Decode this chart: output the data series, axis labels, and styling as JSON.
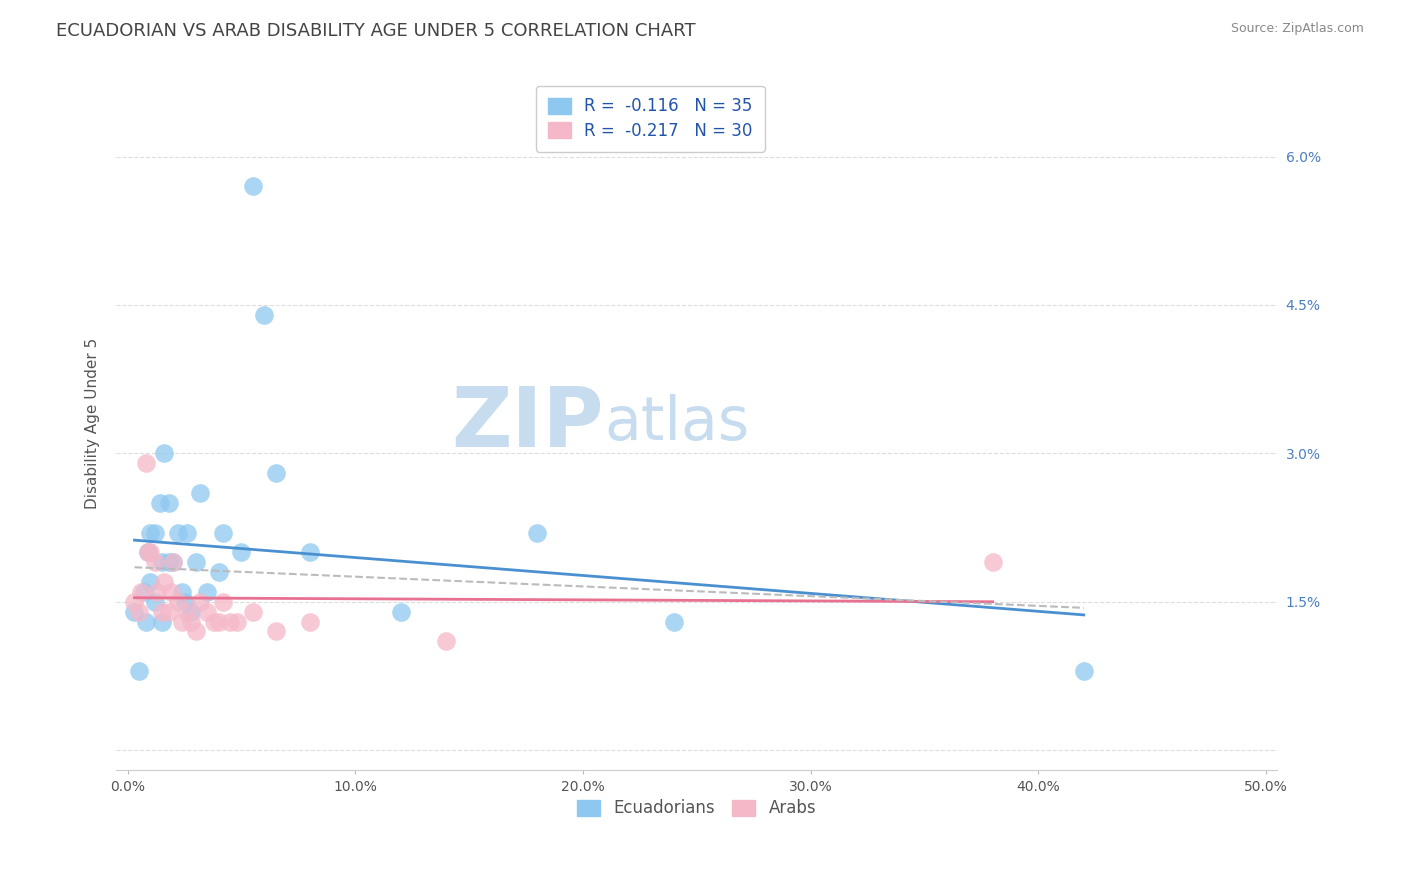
{
  "title": "ECUADORIAN VS ARAB DISABILITY AGE UNDER 5 CORRELATION CHART",
  "source": "Source: ZipAtlas.com",
  "ylabel": "Disability Age Under 5",
  "xlim": [
    -0.005,
    0.505
  ],
  "ylim": [
    -0.002,
    0.068
  ],
  "xticks": [
    0.0,
    0.1,
    0.2,
    0.3,
    0.4,
    0.5
  ],
  "xtick_labels": [
    "0.0%",
    "10.0%",
    "20.0%",
    "30.0%",
    "40.0%",
    "50.0%"
  ],
  "ytick_labels": [
    "",
    "1.5%",
    "3.0%",
    "4.5%",
    "6.0%"
  ],
  "yticks": [
    0.0,
    0.015,
    0.03,
    0.045,
    0.06
  ],
  "ytick_right_labels": [
    "1.5%",
    "3.0%",
    "4.5%",
    "6.0%"
  ],
  "yticks_right": [
    0.015,
    0.03,
    0.045,
    0.06
  ],
  "ecuadorians_x": [
    0.003,
    0.005,
    0.007,
    0.008,
    0.009,
    0.01,
    0.01,
    0.012,
    0.012,
    0.014,
    0.015,
    0.015,
    0.016,
    0.018,
    0.018,
    0.02,
    0.022,
    0.024,
    0.025,
    0.026,
    0.028,
    0.03,
    0.032,
    0.035,
    0.04,
    0.042,
    0.05,
    0.055,
    0.06,
    0.065,
    0.08,
    0.12,
    0.18,
    0.24,
    0.42
  ],
  "ecuadorians_y": [
    0.014,
    0.008,
    0.016,
    0.013,
    0.02,
    0.017,
    0.022,
    0.015,
    0.022,
    0.025,
    0.019,
    0.013,
    0.03,
    0.019,
    0.025,
    0.019,
    0.022,
    0.016,
    0.015,
    0.022,
    0.014,
    0.019,
    0.026,
    0.016,
    0.018,
    0.022,
    0.02,
    0.057,
    0.044,
    0.028,
    0.02,
    0.014,
    0.022,
    0.013,
    0.008
  ],
  "arabs_x": [
    0.003,
    0.005,
    0.006,
    0.008,
    0.009,
    0.01,
    0.012,
    0.013,
    0.015,
    0.016,
    0.018,
    0.019,
    0.02,
    0.022,
    0.024,
    0.026,
    0.028,
    0.03,
    0.032,
    0.035,
    0.038,
    0.04,
    0.042,
    0.045,
    0.048,
    0.055,
    0.065,
    0.08,
    0.14,
    0.38
  ],
  "arabs_y": [
    0.015,
    0.014,
    0.016,
    0.029,
    0.02,
    0.02,
    0.019,
    0.016,
    0.014,
    0.017,
    0.014,
    0.016,
    0.019,
    0.015,
    0.013,
    0.014,
    0.013,
    0.012,
    0.015,
    0.014,
    0.013,
    0.013,
    0.015,
    0.013,
    0.013,
    0.014,
    0.012,
    0.013,
    0.011,
    0.019
  ],
  "ecu_R": -0.116,
  "ecu_N": 35,
  "arab_R": -0.217,
  "arab_N": 30,
  "ecu_color": "#8EC8F0",
  "arab_color": "#F5B8C8",
  "ecu_line_color": "#4A90D0",
  "arab_line_color": "#E87090",
  "combined_line_color": "#BBBBBB",
  "background_color": "#FFFFFF",
  "grid_color": "#DDDDDD",
  "title_fontsize": 13,
  "axis_label_fontsize": 11,
  "tick_fontsize": 10,
  "legend_fontsize": 12,
  "watermark_zip_color": "#C8DCF0",
  "watermark_atlas_color": "#C8DCF0",
  "watermark_fontsize": 60
}
